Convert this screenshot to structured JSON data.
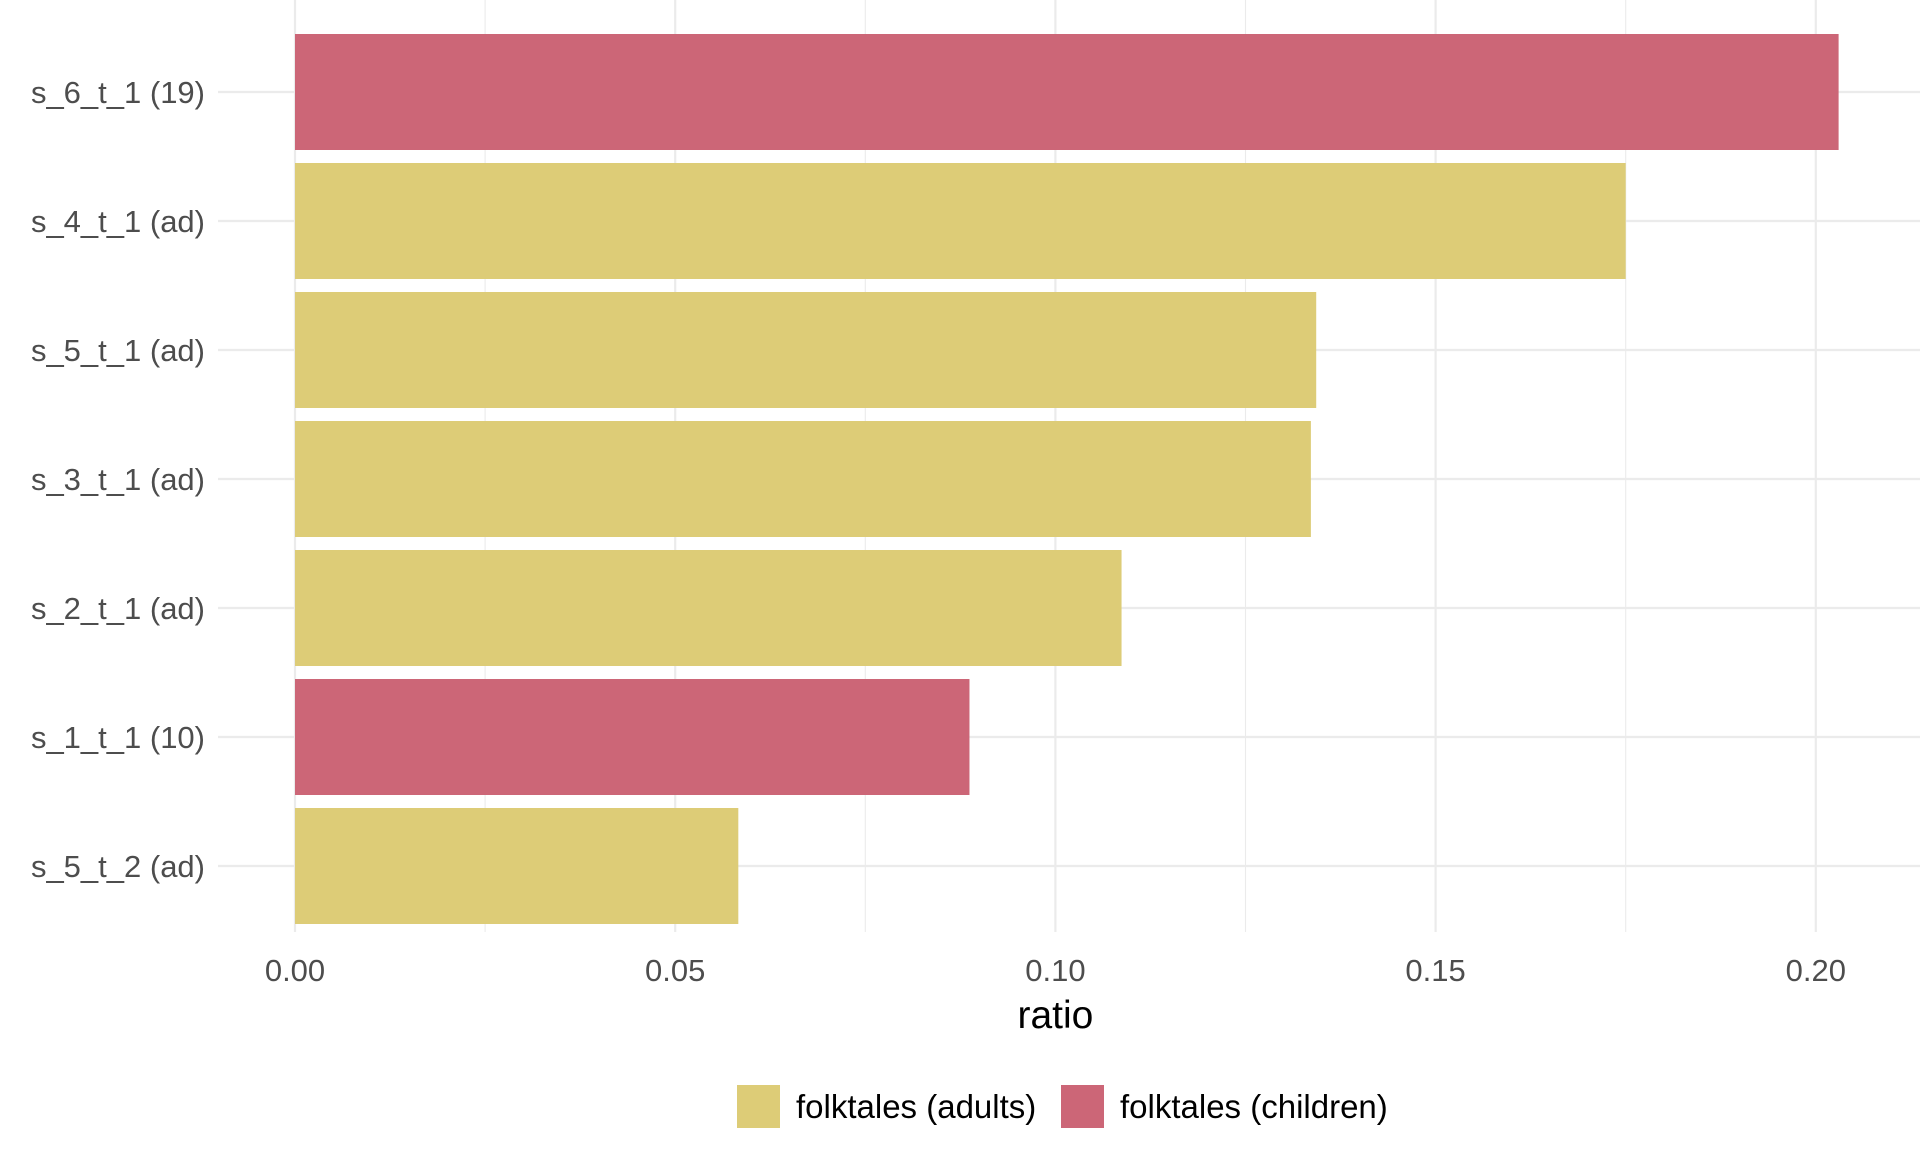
{
  "chart_data": {
    "type": "bar",
    "orientation": "horizontal",
    "title": "",
    "xlabel": "ratio",
    "ylabel": "",
    "xlim": [
      0,
      0.2105
    ],
    "x_ticks": [
      0.0,
      0.05,
      0.1,
      0.15,
      0.2
    ],
    "x_tick_labels": [
      "0.00",
      "0.05",
      "0.10",
      "0.15",
      "0.20"
    ],
    "grid": true,
    "legend_position": "bottom",
    "categories": [
      "s_6_t_1 (19)",
      "s_4_t_1 (ad)",
      "s_5_t_1 (ad)",
      "s_3_t_1 (ad)",
      "s_2_t_1 (ad)",
      "s_1_t_1 (10)",
      "s_5_t_2 (ad)"
    ],
    "values": [
      0.203,
      0.175,
      0.1343,
      0.1336,
      0.1087,
      0.0887,
      0.0583
    ],
    "groups": [
      "folktales (children)",
      "folktales (adults)",
      "folktales (adults)",
      "folktales (adults)",
      "folktales (adults)",
      "folktales (children)",
      "folktales (adults)"
    ],
    "legend": [
      {
        "name": "folktales (adults)",
        "color": "#DDCC77"
      },
      {
        "name": "folktales (children)",
        "color": "#CC6677"
      }
    ]
  }
}
